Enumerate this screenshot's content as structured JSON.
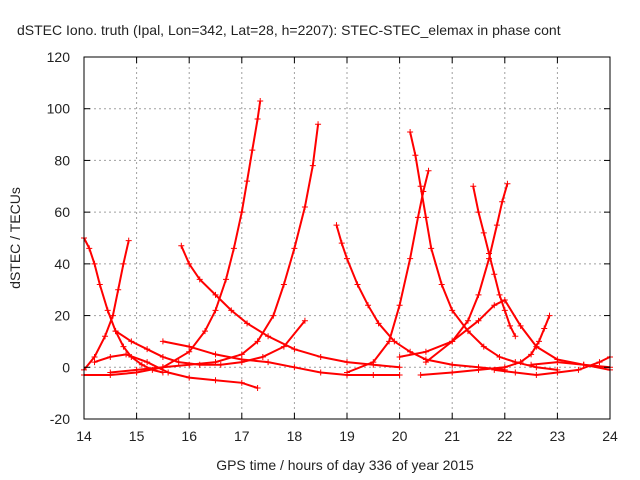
{
  "chart_data": {
    "type": "scatter",
    "title": "dSTEC Iono. truth (Ipal, Lon=342, Lat=28, h=2207): STEC-STEC_elemax in phase cont",
    "xlabel": "GPS time / hours of day 336 of year 2015",
    "ylabel": "dSTEC  / TECUs",
    "xlim": [
      14,
      24
    ],
    "ylim": [
      -20,
      120
    ],
    "xticks": [
      14,
      15,
      16,
      17,
      18,
      19,
      20,
      21,
      22,
      23,
      24
    ],
    "yticks": [
      -20,
      0,
      20,
      40,
      60,
      80,
      100,
      120
    ],
    "xtick_labels": [
      "14",
      "15",
      "16",
      "17",
      "18",
      "19",
      "20",
      "21",
      "22",
      "23",
      "24"
    ],
    "ytick_labels": [
      "-20",
      "0",
      "20",
      "40",
      "60",
      "80",
      "100",
      "120"
    ],
    "grid": true,
    "marker": "+",
    "color": "#ff0000",
    "series": [
      {
        "x": [
          14.0,
          14.1,
          14.2,
          14.3,
          14.45,
          14.6,
          14.75,
          14.9,
          15.1,
          15.3,
          15.5
        ],
        "y": [
          50,
          46,
          40,
          32,
          22,
          14,
          8,
          4,
          1,
          -1,
          -2
        ]
      },
      {
        "x": [
          14.0,
          14.2,
          14.4,
          14.55,
          14.65,
          14.75,
          14.85
        ],
        "y": [
          -1,
          4,
          12,
          20,
          30,
          40,
          49
        ]
      },
      {
        "x": [
          14.0,
          14.5,
          15.0,
          15.5,
          16.0,
          16.3,
          16.5,
          16.7,
          16.85,
          17.0,
          17.1,
          17.2,
          17.3,
          17.35
        ],
        "y": [
          -3,
          -3,
          -2,
          0,
          6,
          14,
          22,
          34,
          46,
          60,
          72,
          84,
          96,
          103
        ]
      },
      {
        "x": [
          14.5,
          15.0,
          15.5,
          16.0,
          16.5,
          17.0,
          17.3,
          17.6,
          17.8,
          18.0,
          18.2,
          18.35,
          18.45
        ],
        "y": [
          -2,
          -1,
          0,
          1,
          2,
          5,
          10,
          20,
          32,
          46,
          62,
          78,
          94
        ]
      },
      {
        "x": [
          14.2,
          14.5,
          14.8,
          15.2,
          15.6,
          16.0,
          16.5,
          17.0,
          17.3
        ],
        "y": [
          2,
          4,
          5,
          2,
          -2,
          -4,
          -5,
          -6,
          -8
        ]
      },
      {
        "x": [
          15.85,
          16.0,
          16.2,
          16.5,
          16.8,
          17.1,
          17.5,
          18.0,
          18.5,
          19.0,
          19.5,
          20.0
        ],
        "y": [
          47,
          40,
          34,
          28,
          22,
          17,
          12,
          7,
          4,
          2,
          1,
          0
        ]
      },
      {
        "x": [
          14.6,
          14.9,
          15.2,
          15.5,
          15.8,
          16.2,
          16.6,
          17.0,
          17.4,
          17.8,
          18.2
        ],
        "y": [
          14,
          10,
          7,
          4,
          2,
          1,
          1,
          2,
          4,
          8,
          18
        ]
      },
      {
        "x": [
          15.5,
          16.0,
          16.5,
          17.0,
          17.5,
          18.0,
          18.5,
          19.0,
          19.5,
          20.0
        ],
        "y": [
          10,
          8,
          5,
          3,
          2,
          0,
          -2,
          -3,
          -3,
          -3
        ]
      },
      {
        "x": [
          18.8,
          18.9,
          19.0,
          19.2,
          19.4,
          19.6,
          19.9,
          20.2,
          20.5,
          21.0,
          21.5,
          22.0
        ],
        "y": [
          55,
          48,
          42,
          32,
          24,
          17,
          10,
          6,
          3,
          1,
          0,
          -1
        ]
      },
      {
        "x": [
          19.0,
          19.5,
          19.8,
          20.0,
          20.2,
          20.35,
          20.45,
          20.55
        ],
        "y": [
          -2,
          2,
          10,
          24,
          42,
          58,
          68,
          76
        ]
      },
      {
        "x": [
          20.2,
          20.3,
          20.4,
          20.5,
          20.6,
          20.8,
          21.0,
          21.3,
          21.6,
          21.9,
          22.2,
          22.6,
          23.0
        ],
        "y": [
          91,
          82,
          70,
          58,
          46,
          32,
          22,
          14,
          8,
          4,
          2,
          0,
          -1
        ]
      },
      {
        "x": [
          20.0,
          20.5,
          21.0,
          21.3,
          21.5,
          21.7,
          21.85,
          21.95,
          22.05
        ],
        "y": [
          4,
          6,
          10,
          18,
          28,
          42,
          55,
          64,
          71
        ]
      },
      {
        "x": [
          21.4,
          21.5,
          21.6,
          21.7,
          21.8,
          21.9,
          22.0,
          22.1,
          22.2
        ],
        "y": [
          70,
          60,
          52,
          44,
          36,
          28,
          22,
          16,
          12
        ]
      },
      {
        "x": [
          20.5,
          21.0,
          21.5,
          21.8,
          22.0,
          22.3,
          22.6,
          23.0,
          23.5,
          24.0
        ],
        "y": [
          2,
          10,
          18,
          24,
          26,
          16,
          8,
          3,
          1,
          0
        ]
      },
      {
        "x": [
          20.4,
          21.0,
          21.5,
          22.0,
          22.3,
          22.5,
          22.65,
          22.75,
          22.85
        ],
        "y": [
          -3,
          -2,
          -1,
          0,
          2,
          5,
          10,
          15,
          20
        ]
      },
      {
        "x": [
          21.8,
          22.2,
          22.6,
          23.0,
          23.4,
          23.8,
          24.0
        ],
        "y": [
          -1,
          -2,
          -3,
          -2,
          -1,
          2,
          4
        ]
      },
      {
        "x": [
          22.5,
          23.0,
          23.5,
          24.0
        ],
        "y": [
          1,
          2,
          1,
          -1
        ]
      }
    ]
  }
}
